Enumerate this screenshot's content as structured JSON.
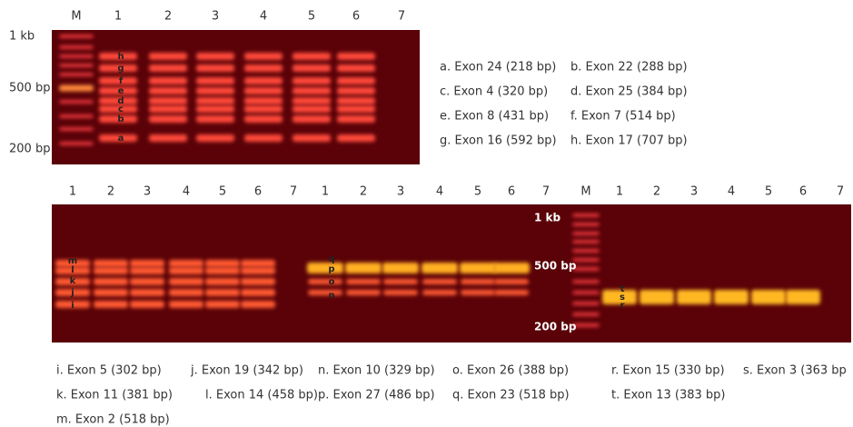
{
  "top_gel": {
    "lanes": [
      "M",
      "1",
      "2",
      "3",
      "4",
      "5",
      "6",
      "7"
    ],
    "markers": [
      "1 kb",
      "500 bp",
      "200 bp"
    ],
    "band_letters": [
      "h",
      "g",
      "f",
      "e",
      "d",
      "c",
      "b",
      "a"
    ],
    "legend": [
      [
        "a. Exon 24 (218 bp)",
        "b. Exon 22 (288 bp)"
      ],
      [
        "c. Exon 4 (320 bp)",
        "d. Exon 25 (384 bp)"
      ],
      [
        "e. Exon 8 (431 bp)",
        "f. Exon 7 (514 bp)"
      ],
      [
        "g. Exon 16 (592 bp)",
        "h. Exon 17 (707 bp)"
      ]
    ]
  },
  "bottom_gel": {
    "lanes": [
      "1",
      "2",
      "3",
      "4",
      "5",
      "6",
      "7",
      "1",
      "2",
      "3",
      "4",
      "5",
      "6",
      "7",
      "M",
      "1",
      "2",
      "3",
      "4",
      "5",
      "6",
      "7"
    ],
    "markers": [
      "1 kb",
      "500 bp",
      "200 bp"
    ],
    "band_letters_1": [
      "m",
      "l",
      "k",
      "j",
      "i"
    ],
    "band_letters_2": [
      "q",
      "p",
      "o",
      "n"
    ],
    "band_letters_3": [
      "t",
      "s",
      "r"
    ],
    "legend": [
      [
        "i. Exon 5 (302 bp)",
        "j. Exon 19 (342 bp)",
        "n. Exon 10 (329 bp)",
        "o. Exon 26 (388 bp)",
        "r. Exon 15 (330 bp)",
        "s. Exon 3 (363 bp"
      ],
      [
        "k. Exon 11 (381 bp)",
        "l. Exon 14 (458 bp)",
        "p. Exon 27 (486 bp)",
        "q. Exon 23 (518 bp)",
        "t. Exon 13 (383 bp)"
      ],
      [
        "m. Exon 2 (518 bp)"
      ]
    ]
  }
}
